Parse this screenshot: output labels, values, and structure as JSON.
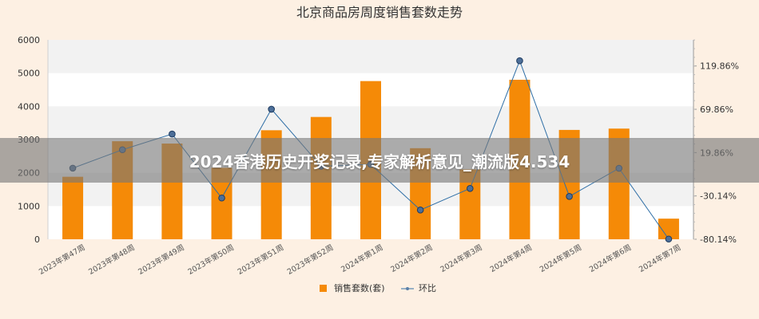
{
  "chart_data": {
    "type": "bar",
    "title": "北京商品房周度销售套数走势",
    "categories": [
      "2023年第47周",
      "2023年第48周",
      "2023年第49周",
      "2023年第50周",
      "2023年第51周",
      "2023年第52周",
      "2024年第1周",
      "2024年第2周",
      "2024年第3周",
      "2024年第4周",
      "2024年第5周",
      "2024年第6周",
      "2024年第7周"
    ],
    "series": [
      {
        "name": "销售套数(套)",
        "type": "bar",
        "axis": "left",
        "color": "#f58a07",
        "values": [
          1880,
          2950,
          2880,
          2150,
          3280,
          3680,
          4760,
          2740,
          2100,
          4800,
          3290,
          3330,
          620
        ]
      },
      {
        "name": "环比",
        "type": "line",
        "axis": "right",
        "color": "#2e6ea6",
        "values": [
          1.9,
          23.2,
          41.3,
          -32.5,
          70.0,
          4.1,
          6.3,
          -46.4,
          -21.5,
          125.9,
          -30.7,
          1.8,
          -79.9
        ]
      }
    ],
    "left_axis": {
      "ylim": [
        0,
        6000
      ],
      "ticks": [
        "0",
        "1000",
        "2000",
        "3000",
        "4000",
        "5000",
        "6000"
      ]
    },
    "right_axis": {
      "ylim": [
        -80.14,
        150
      ],
      "ticks": [
        "-80.14%",
        "-30.14%",
        "19.86%",
        "69.86%",
        "119.86%"
      ]
    },
    "legend": {
      "position": "bottom",
      "labels": [
        "销售套数(套)",
        "环比"
      ]
    }
  },
  "overlay": {
    "text": "2024香港历史开奖记录,专家解析意见_潮流版4.534"
  }
}
